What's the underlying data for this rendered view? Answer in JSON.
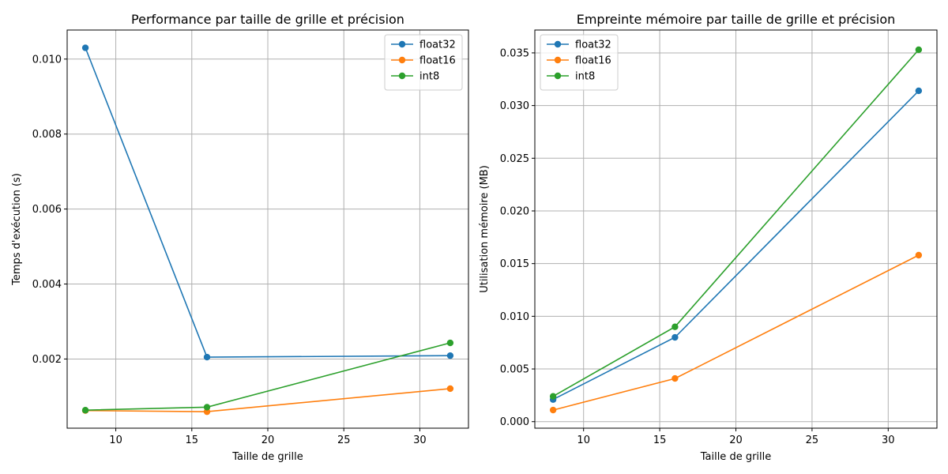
{
  "chart_data": [
    {
      "type": "line",
      "title": "Performance par taille de grille et précision",
      "xlabel": "Taille de grille",
      "ylabel": "Temps d'exécution (s)",
      "x": [
        8,
        16,
        32
      ],
      "xlim": [
        6.8,
        33.2
      ],
      "ylim": [
        0.000155,
        0.010775
      ],
      "xticks": [
        10,
        15,
        20,
        25,
        30
      ],
      "yticks": [
        0.002,
        0.004,
        0.006,
        0.008,
        0.01
      ],
      "ytick_labels": [
        "0.002",
        "0.004",
        "0.006",
        "0.008",
        "0.010"
      ],
      "grid": true,
      "legend_position": "top-right",
      "series": [
        {
          "name": "float32",
          "color": "#1f77b4",
          "values": [
            0.0103,
            0.00205,
            0.00209
          ]
        },
        {
          "name": "float16",
          "color": "#ff7f0e",
          "values": [
            0.000625,
            0.000595,
            0.00121
          ]
        },
        {
          "name": "int8",
          "color": "#2ca02c",
          "values": [
            0.000635,
            0.000715,
            0.00243
          ]
        }
      ]
    },
    {
      "type": "line",
      "title": "Empreinte mémoire par taille de grille et précision",
      "xlabel": "Taille de grille",
      "ylabel": "Utilisation mémoire (MB)",
      "x": [
        8,
        16,
        32
      ],
      "xlim": [
        6.8,
        33.2
      ],
      "ylim": [
        -0.00062,
        0.03717
      ],
      "xticks": [
        10,
        15,
        20,
        25,
        30
      ],
      "yticks": [
        0.0,
        0.005,
        0.01,
        0.015,
        0.02,
        0.025,
        0.03,
        0.035
      ],
      "ytick_labels": [
        "0.000",
        "0.005",
        "0.010",
        "0.015",
        "0.020",
        "0.025",
        "0.030",
        "0.035"
      ],
      "grid": true,
      "legend_position": "top-left",
      "series": [
        {
          "name": "float32",
          "color": "#1f77b4",
          "values": [
            0.0021,
            0.008,
            0.0314
          ]
        },
        {
          "name": "float16",
          "color": "#ff7f0e",
          "values": [
            0.0011,
            0.0041,
            0.0158
          ]
        },
        {
          "name": "int8",
          "color": "#2ca02c",
          "values": [
            0.0024,
            0.009,
            0.0353
          ]
        }
      ]
    }
  ]
}
